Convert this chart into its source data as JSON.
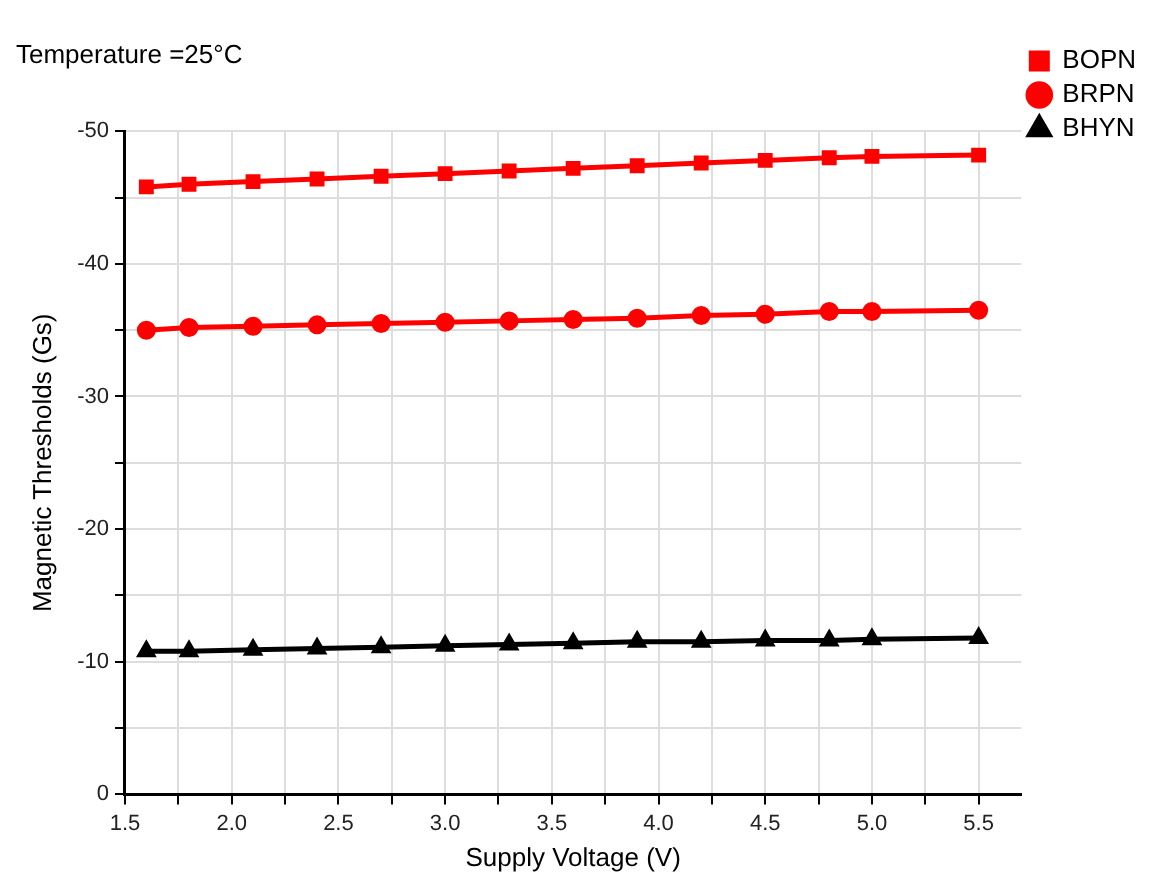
{
  "chart_data": {
    "type": "line",
    "title": "Temperature =25°C",
    "xlabel": "Supply Voltage (V)",
    "ylabel": "Magnetic Thresholds (Gs)",
    "x": [
      1.6,
      1.8,
      2.1,
      2.4,
      2.7,
      3.0,
      3.3,
      3.6,
      3.9,
      4.2,
      4.5,
      4.8,
      5.0,
      5.5
    ],
    "series": [
      {
        "name": "BOPN",
        "color": "#ff0000",
        "marker": "square",
        "values": [
          -45.8,
          -46.0,
          -46.2,
          -46.4,
          -46.6,
          -46.8,
          -47.0,
          -47.2,
          -47.4,
          -47.6,
          -47.8,
          -48.0,
          -48.1,
          -48.2
        ]
      },
      {
        "name": "BRPN",
        "color": "#ff0000",
        "marker": "circle",
        "values": [
          -35.0,
          -35.2,
          -35.3,
          -35.4,
          -35.5,
          -35.6,
          -35.7,
          -35.8,
          -35.9,
          -36.1,
          -36.2,
          -36.4,
          -36.4,
          -36.5
        ]
      },
      {
        "name": "BHYN",
        "color": "#000000",
        "marker": "triangle",
        "values": [
          -10.8,
          -10.8,
          -10.9,
          -11.0,
          -11.1,
          -11.2,
          -11.3,
          -11.4,
          -11.5,
          -11.5,
          -11.6,
          -11.6,
          -11.7,
          -11.8
        ]
      }
    ],
    "xlim": [
      1.5,
      5.7
    ],
    "xticks": [
      1.5,
      {
        "value": 1.75,
        "label": null
      },
      "2.0",
      {
        "value": 2.25,
        "label": null
      },
      2.5,
      {
        "value": 2.75,
        "label": null
      },
      "3.0",
      {
        "value": 3.25,
        "label": null
      },
      3.5,
      {
        "value": 3.75,
        "label": null
      },
      "4.0",
      {
        "value": 4.25,
        "label": null
      },
      4.5,
      {
        "value": 4.75,
        "label": null
      },
      "5.0",
      {
        "value": 5.25,
        "label": null
      },
      5.5
    ],
    "ylim": [
      0,
      -50
    ],
    "yticks": [
      0,
      {
        "value": -5,
        "label": null
      },
      -10,
      {
        "value": -15,
        "label": null
      },
      -20,
      {
        "value": -25,
        "label": null
      },
      -30,
      {
        "value": -35,
        "label": null
      },
      -40,
      {
        "value": -45,
        "label": null
      },
      -50
    ],
    "grid": true,
    "legend": "top right",
    "line_style": "solid"
  }
}
